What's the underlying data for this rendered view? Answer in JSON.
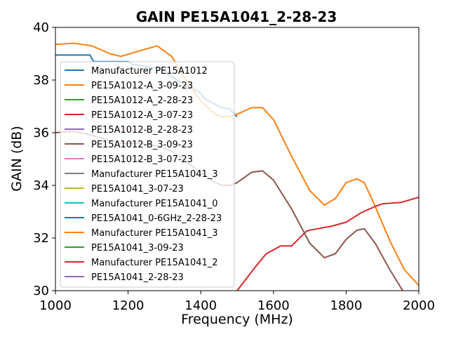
{
  "chart_data": {
    "type": "line",
    "title": "GAIN PE15A1041_2-28-23",
    "xlabel": "Frequency (MHz)",
    "ylabel": "GAIN (dB)",
    "xlim": [
      1000,
      2000
    ],
    "ylim": [
      30,
      40
    ],
    "xticks": [
      "1000",
      "1200",
      "1400",
      "1600",
      "1800",
      "2000"
    ],
    "yticks": [
      "30",
      "32",
      "34",
      "36",
      "38",
      "40"
    ],
    "grid": false,
    "legend_position": "center-left",
    "series": [
      {
        "name": "Manufacturer PE15A1012",
        "color": "#1f77b4",
        "x": [
          1000,
          1095,
          1105,
          1200,
          1210,
          1300,
          1310,
          1400,
          1410,
          1450,
          1460,
          1480,
          1500
        ],
        "y": [
          38.95,
          38.95,
          38.7,
          38.7,
          38.6,
          38.4,
          38.2,
          37.5,
          37.3,
          37.0,
          36.95,
          36.9,
          36.6
        ]
      },
      {
        "name": "PE15A1012-A_3-09-23",
        "color": "#ff7f0e",
        "x": [
          1000,
          1050,
          1100,
          1150,
          1180,
          1230,
          1280,
          1320,
          1360,
          1400,
          1440,
          1460,
          1480,
          1500,
          1540,
          1570,
          1600,
          1650,
          1700,
          1740,
          1770,
          1800,
          1830,
          1850,
          1880,
          1920,
          1960,
          2000
        ],
        "y": [
          39.35,
          39.4,
          39.3,
          39.0,
          38.9,
          39.1,
          39.3,
          38.9,
          38.0,
          37.2,
          36.7,
          36.6,
          36.6,
          36.7,
          36.95,
          36.95,
          36.5,
          35.1,
          33.8,
          33.25,
          33.5,
          34.1,
          34.25,
          34.1,
          33.2,
          31.9,
          30.8,
          30.2
        ]
      },
      {
        "name": "PE15A1012-A_2-28-23",
        "color": "#2ca02c",
        "x": [],
        "y": []
      },
      {
        "name": "PE15A1012-A_3-07-23",
        "color": "#d62728",
        "x": [
          1480,
          1500,
          1550,
          1580,
          1620,
          1650,
          1690,
          1700,
          1760,
          1800,
          1840,
          1880,
          1900,
          1950,
          2000
        ],
        "y": [
          29.5,
          30.0,
          30.9,
          31.4,
          31.7,
          31.7,
          32.25,
          32.3,
          32.45,
          32.6,
          32.95,
          33.2,
          33.3,
          33.35,
          33.55
        ]
      },
      {
        "name": "PE15A1012-B_2-28-23",
        "color": "#9467bd",
        "x": [],
        "y": []
      },
      {
        "name": "PE15A1012-B_3-09-23",
        "color": "#8c564b",
        "x": [
          1000,
          1050,
          1100,
          1150,
          1180,
          1230,
          1280,
          1320,
          1360,
          1400,
          1440,
          1460,
          1480,
          1500,
          1540,
          1570,
          1600,
          1650,
          1700,
          1740,
          1770,
          1800,
          1830,
          1850,
          1880,
          1920,
          1960,
          2000
        ],
        "y": [
          36.0,
          36.05,
          35.9,
          35.7,
          35.6,
          35.6,
          35.5,
          35.3,
          34.9,
          34.5,
          34.1,
          34.0,
          34.0,
          34.1,
          34.5,
          34.55,
          34.2,
          33.1,
          31.8,
          31.25,
          31.4,
          31.95,
          32.3,
          32.35,
          31.8,
          30.8,
          29.9,
          29.2
        ]
      },
      {
        "name": "PE15A1012-B_3-07-23",
        "color": "#e377c2",
        "x": [],
        "y": []
      },
      {
        "name": "Manufacturer PE15A1041_3",
        "color": "#7f7f7f",
        "x": [],
        "y": []
      },
      {
        "name": "PE15A1041_3-07-23",
        "color": "#bcbd22",
        "x": [],
        "y": []
      },
      {
        "name": "Manufacturer PE15A1041_0",
        "color": "#17becf",
        "x": [],
        "y": []
      },
      {
        "name": "PE15A1041_0-6GHz_2-28-23",
        "color": "#1f77b4",
        "x": [],
        "y": []
      },
      {
        "name": "Manufacturer PE15A1041_3",
        "color": "#ff7f0e",
        "x": [],
        "y": []
      },
      {
        "name": "PE15A1041_3-09-23",
        "color": "#2ca02c",
        "x": [],
        "y": []
      },
      {
        "name": "Manufacturer PE15A1041_2",
        "color": "#d62728",
        "x": [],
        "y": []
      },
      {
        "name": "PE15A1041_2-28-23",
        "color": "#9467bd",
        "x": [],
        "y": []
      }
    ]
  }
}
